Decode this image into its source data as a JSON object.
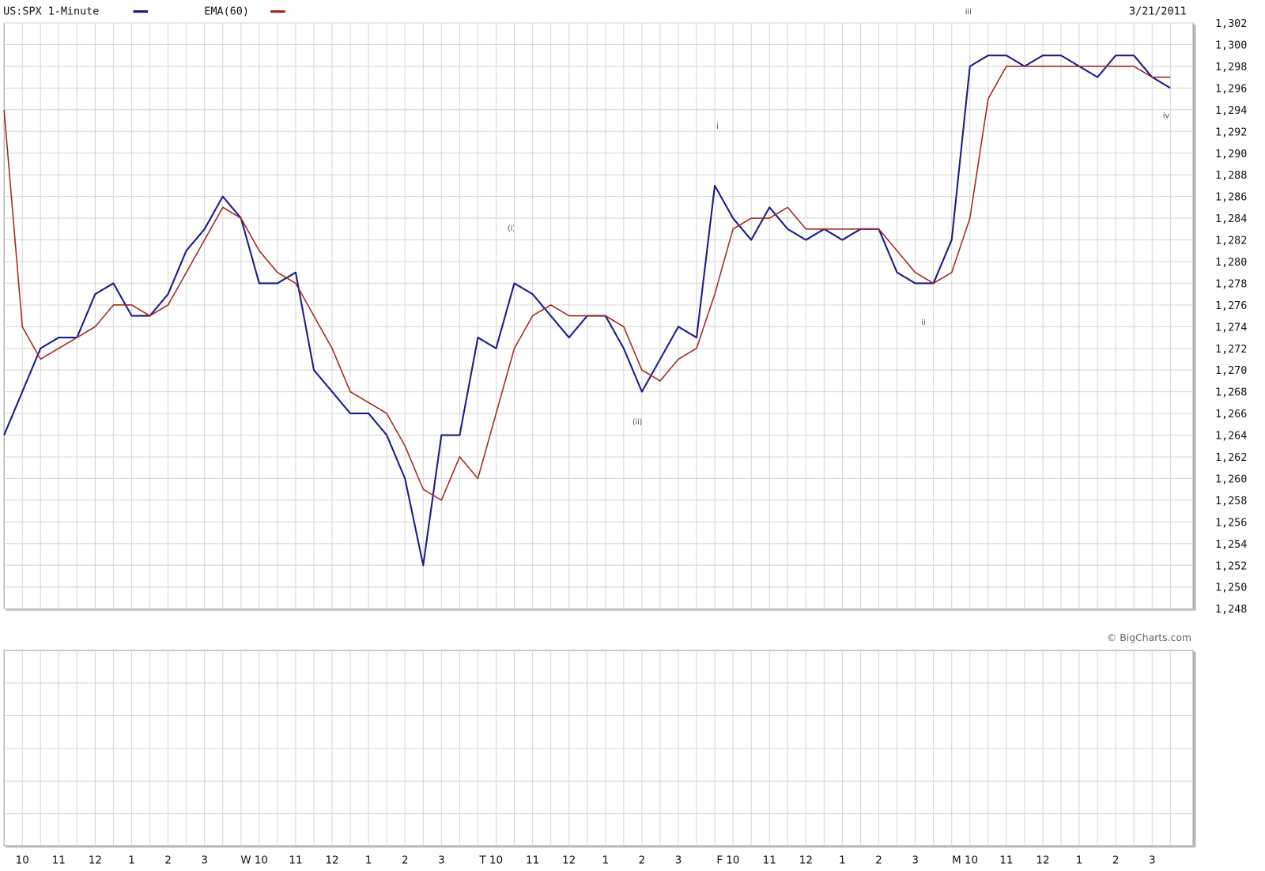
{
  "chart_data": {
    "type": "line",
    "date": "3/21/2011",
    "source": "© BigCharts.com",
    "annotations": [
      "(i)",
      "(ii)",
      "i",
      "ii",
      "iii",
      "iv"
    ],
    "categories": [
      null,
      "10",
      null,
      "11",
      null,
      "12",
      null,
      "1",
      null,
      "2",
      null,
      "3",
      null,
      null,
      "W 10",
      null,
      "11",
      null,
      "12",
      null,
      "1",
      null,
      "2",
      null,
      "3",
      null,
      null,
      "T 10",
      null,
      "11",
      null,
      "12",
      null,
      "1",
      null,
      "2",
      null,
      "3",
      null,
      null,
      "F 10",
      null,
      "11",
      null,
      "12",
      null,
      "1",
      null,
      "2",
      null,
      "3",
      null,
      null,
      "M 10",
      null,
      "11",
      null,
      "12",
      null,
      "1",
      null,
      "2",
      null,
      "3",
      null
    ],
    "series": [
      {
        "name": "US:SPX 1-Minute",
        "color": "#1a1a8c",
        "values": [
          1264,
          1268,
          1272,
          1273,
          1273,
          1277,
          1278,
          1275,
          1275,
          1277,
          1281,
          1283,
          1286,
          1284,
          1278,
          1278,
          1279,
          1270,
          1268,
          1266,
          1266,
          1264,
          1260,
          1252,
          1264,
          1264,
          1273,
          1272,
          1278,
          1277,
          1275,
          1273,
          1275,
          1275,
          1272,
          1268,
          1271,
          1274,
          1273,
          1287,
          1284,
          1282,
          1285,
          1283,
          1282,
          1283,
          1282,
          1283,
          1283,
          1279,
          1278,
          1278,
          1282,
          1298,
          1299,
          1299,
          1298,
          1299,
          1299,
          1298,
          1297,
          1299,
          1299,
          1297,
          1296
        ]
      },
      {
        "name": "EMA(60)",
        "color": "#a0281e",
        "values": [
          1294,
          1274,
          1271,
          1272,
          1273,
          1274,
          1276,
          1276,
          1275,
          1276,
          1279,
          1282,
          1285,
          1284,
          1281,
          1279,
          1278,
          1275,
          1272,
          1268,
          1267,
          1266,
          1263,
          1259,
          1258,
          1262,
          1260,
          1266,
          1272,
          1275,
          1276,
          1275,
          1275,
          1275,
          1274,
          1270,
          1269,
          1271,
          1272,
          1277,
          1283,
          1284,
          1284,
          1285,
          1283,
          1283,
          1283,
          1283,
          1283,
          1281,
          1279,
          1278,
          1279,
          1284,
          1295,
          1298,
          1298,
          1298,
          1298,
          1298,
          1298,
          1298,
          1298,
          1297,
          1297
        ]
      }
    ],
    "ylim": [
      1248,
      1302
    ],
    "yticks": [
      {
        "value": 1248,
        "label": "1,248"
      },
      {
        "value": 1250,
        "label": "1,250"
      },
      {
        "value": 1252,
        "label": "1,252"
      },
      {
        "value": 1254,
        "label": "1,254"
      },
      {
        "value": 1256,
        "label": "1,256"
      },
      {
        "value": 1258,
        "label": "1,258"
      },
      {
        "value": 1260,
        "label": "1,260"
      },
      {
        "value": 1262,
        "label": "1,262"
      },
      {
        "value": 1264,
        "label": "1,264"
      },
      {
        "value": 1266,
        "label": "1,266"
      },
      {
        "value": 1268,
        "label": "1,268"
      },
      {
        "value": 1270,
        "label": "1,270"
      },
      {
        "value": 1272,
        "label": "1,272"
      },
      {
        "value": 1274,
        "label": "1,274"
      },
      {
        "value": 1276,
        "label": "1,276"
      },
      {
        "value": 1278,
        "label": "1,278"
      },
      {
        "value": 1280,
        "label": "1,280"
      },
      {
        "value": 1282,
        "label": "1,282"
      },
      {
        "value": 1284,
        "label": "1,284"
      },
      {
        "value": 1286,
        "label": "1,286"
      },
      {
        "value": 1288,
        "label": "1,288"
      },
      {
        "value": 1290,
        "label": "1,290"
      },
      {
        "value": 1292,
        "label": "1,292"
      },
      {
        "value": 1294,
        "label": "1,294"
      },
      {
        "value": 1296,
        "label": "1,296"
      },
      {
        "value": 1298,
        "label": "1,298"
      },
      {
        "value": 1300,
        "label": "1,300"
      },
      {
        "value": 1302,
        "label": "1,302"
      }
    ],
    "grid": true
  }
}
